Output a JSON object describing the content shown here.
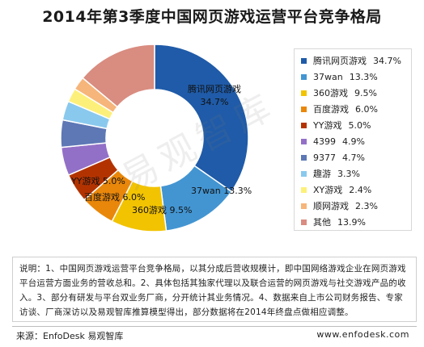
{
  "chart_data": {
    "type": "pie",
    "title": "2014年第3季度中国网页游戏运营平台竞争格局",
    "slices": [
      {
        "name": "腾讯网页游戏",
        "value": 34.7,
        "value_label": "34.7%",
        "color": "#1f5ba8"
      },
      {
        "name": "37wan",
        "value": 13.3,
        "value_label": "13.3%",
        "color": "#4395d2"
      },
      {
        "name": "360游戏",
        "value": 9.5,
        "value_label": "9.5%",
        "color": "#f2c300"
      },
      {
        "name": "百度游戏",
        "value": 6.0,
        "value_label": "6.0%",
        "color": "#e9870a"
      },
      {
        "name": "YY游戏",
        "value": 5.0,
        "value_label": "5.0%",
        "color": "#b33300"
      },
      {
        "name": "4399",
        "value": 4.9,
        "value_label": "4.9%",
        "color": "#9370c7"
      },
      {
        "name": "9377",
        "value": 4.7,
        "value_label": "4.7%",
        "color": "#5e78b5"
      },
      {
        "name": "趣游",
        "value": 3.3,
        "value_label": "3.3%",
        "color": "#8ac9ee"
      },
      {
        "name": "XY游戏",
        "value": 2.4,
        "value_label": "2.4%",
        "color": "#fdf07a"
      },
      {
        "name": "顺网游戏",
        "value": 2.3,
        "value_label": "2.3%",
        "color": "#f6b57a"
      },
      {
        "name": "其他",
        "value": 13.9,
        "value_label": "13.9%",
        "color": "#d98c80"
      }
    ],
    "data_labels": [
      {
        "name": "腾讯网页游戏",
        "value_label": "34.7%"
      },
      {
        "name": "37wan",
        "value_label": "13.3%"
      },
      {
        "name": "360游戏",
        "value_label": "9.5%"
      },
      {
        "name": "百度游戏",
        "value_label": "6.0%"
      },
      {
        "name": "YY游戏",
        "value_label": "5.0%"
      }
    ],
    "donut": true,
    "legend_position": "right"
  },
  "note": {
    "lines": [
      "说明：1、中国网页游戏运营平台竞争格局，以其分成后营收规模计，即中国网络游戏企业在网页游戏",
      "平台运营方面业务的营收总和。2、具体包括其独家代理以及联合运营的网页游戏与社交游戏产品的收",
      "入。3、部分有研发与平台双业务厂商，分开统计其业务情况。4、数据来自上市公司财务报告、专家",
      "访谈、厂商深访以及易观智库推算模型得出，部分数据将在2014年终盘点做相应调整。"
    ]
  },
  "footer": {
    "source": "来源：EnfoDesk 易观智库",
    "url": "www.enfodesk.com"
  },
  "watermark": {
    "text": "易观智库"
  }
}
